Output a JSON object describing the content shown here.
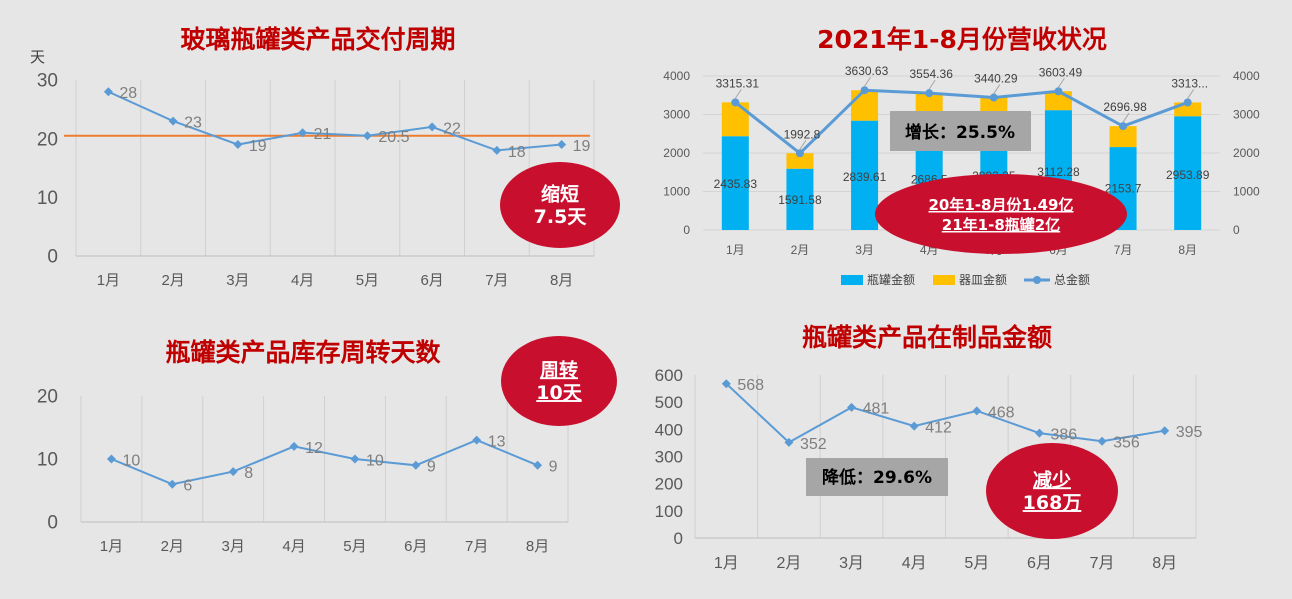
{
  "colors": {
    "title_red": "#c00000",
    "oval_red": "#c8102e",
    "line_blue": "#5b9bd5",
    "bar_blue": "#00b0f0",
    "bar_yellow": "#ffc000",
    "target_orange": "#ed7d31",
    "gray_box": "#a6a6a6"
  },
  "chart_data": [
    {
      "type": "line",
      "title": "玻璃瓶罐类产品交付周期",
      "ylabel": "天",
      "categories": [
        "1月",
        "2月",
        "3月",
        "4月",
        "5月",
        "6月",
        "7月",
        "8月"
      ],
      "values": [
        28,
        23,
        19,
        21,
        20.5,
        22,
        18,
        19
      ],
      "value_labels": [
        "28",
        "23",
        "19",
        "21",
        "20.5",
        "22",
        "18",
        "19"
      ],
      "reference_line": 20.5,
      "ylim": [
        0,
        30
      ],
      "yticks": [
        "0",
        "10",
        "20",
        "30"
      ],
      "grid": "vertical",
      "callout": {
        "line1": "缩短",
        "line2": "7.5天"
      }
    },
    {
      "type": "bar",
      "title": "2021年1-8月份营收状况",
      "categories": [
        "1月",
        "2月",
        "3月",
        "4月",
        "5月",
        "6月",
        "7月",
        "8月"
      ],
      "series": [
        {
          "name": "瓶罐金额",
          "values": [
            2435.83,
            1591.58,
            2839.61,
            2686.5,
            2892.25,
            3112.28,
            2153.7,
            2953.89
          ],
          "labels": [
            "2435.83",
            "1591.58",
            "2839.61",
            "2686.5",
            "2892.25",
            "3112.28",
            "2153.7",
            "2953.89"
          ]
        },
        {
          "name": "器皿金额",
          "values": [
            879.48,
            401.22,
            791.02,
            867.86,
            548.04,
            491.21,
            543.28,
            359.11
          ]
        },
        {
          "name": "总金额",
          "type": "line",
          "values": [
            3315.31,
            1992.8,
            3630.63,
            3554.36,
            3440.29,
            3603.49,
            2696.98,
            3313
          ],
          "labels": [
            "3315.31",
            "1992.8",
            "3630.63",
            "3554.36",
            "3440.29",
            "3603.49",
            "2696.98",
            "3313..."
          ]
        }
      ],
      "ylim": [
        0,
        4000
      ],
      "yticks": [
        "0",
        "1000",
        "2000",
        "3000",
        "4000"
      ],
      "legend": "bottom",
      "growth_box": "增长：25.5%",
      "callout": {
        "line1": "20年1-8月份1.49亿",
        "line2": "21年1-8瓶罐2亿"
      }
    },
    {
      "type": "line",
      "title": "瓶罐类产品库存周转天数",
      "categories": [
        "1月",
        "2月",
        "3月",
        "4月",
        "5月",
        "6月",
        "7月",
        "8月"
      ],
      "values": [
        10,
        6,
        8,
        12,
        10,
        9,
        13,
        9
      ],
      "value_labels": [
        "10",
        "6",
        "8",
        "12",
        "10",
        "9",
        "13",
        "9"
      ],
      "ylim": [
        0,
        20
      ],
      "yticks": [
        "0",
        "10",
        "20"
      ],
      "grid": "vertical",
      "callout": {
        "line1": "周转",
        "line2": "10天"
      }
    },
    {
      "type": "line",
      "title": "瓶罐类产品在制品金额",
      "categories": [
        "1月",
        "2月",
        "3月",
        "4月",
        "5月",
        "6月",
        "7月",
        "8月"
      ],
      "values": [
        568,
        352,
        481,
        412,
        468,
        386,
        356,
        395
      ],
      "value_labels": [
        "568",
        "352",
        "481",
        "412",
        "468",
        "386",
        "356",
        "395"
      ],
      "ylim": [
        0,
        600
      ],
      "yticks": [
        "0",
        "100",
        "200",
        "300",
        "400",
        "500",
        "600"
      ],
      "grid": "vertical",
      "decline_box": "降低：29.6%",
      "callout": {
        "line1": "减少",
        "line2": "168万"
      }
    }
  ]
}
